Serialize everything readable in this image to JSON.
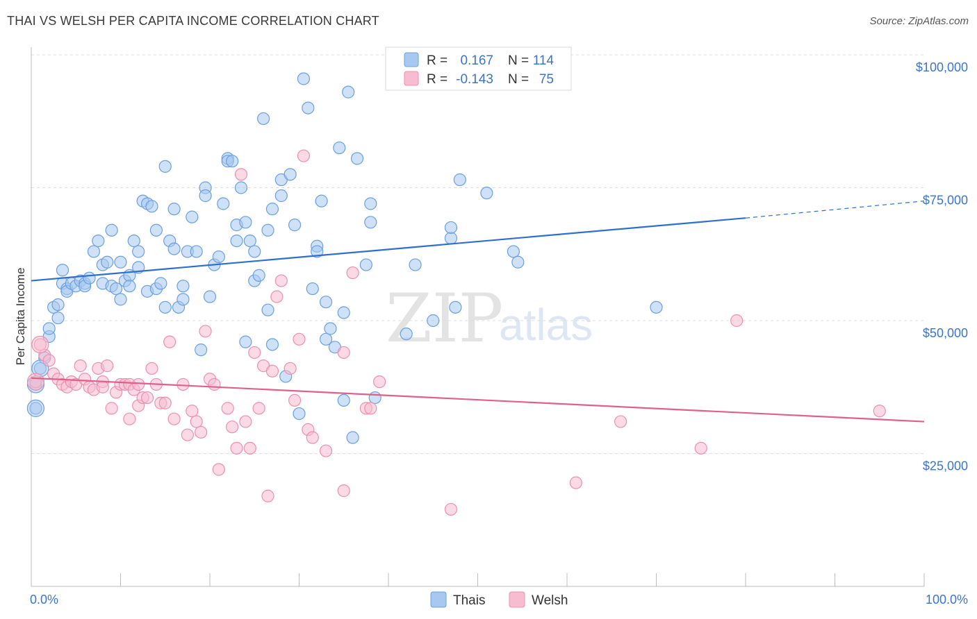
{
  "title": "THAI VS WELSH PER CAPITA INCOME CORRELATION CHART",
  "source": "Source: ZipAtlas.com",
  "watermark": {
    "zip": "ZIP",
    "atlas": "atlas"
  },
  "legend_top": [
    {
      "r_label": "R =",
      "r_value": "0.167",
      "n_label": "N =",
      "n_value": "114",
      "color": "#a8c8f0",
      "stroke": "#6a9fe0"
    },
    {
      "r_label": "R =",
      "r_value": "-0.143",
      "n_label": "N =",
      "n_value": "75",
      "color": "#f8bcd0",
      "stroke": "#ec8fae"
    }
  ],
  "legend_bottom": [
    {
      "label": "Thais",
      "color": "#a8c8f0",
      "stroke": "#6a9fe0"
    },
    {
      "label": "Welsh",
      "color": "#f8bcd0",
      "stroke": "#ec8fae"
    }
  ],
  "chart_data": {
    "type": "scatter",
    "title": "THAI VS WELSH PER CAPITA INCOME CORRELATION CHART",
    "xlabel": "",
    "ylabel": "Per Capita Income",
    "xlim": [
      0,
      100
    ],
    "ylim": [
      0,
      100000
    ],
    "x_tick_labels": [
      "0.0%",
      "100.0%"
    ],
    "y_ticks": [
      25000,
      50000,
      75000,
      100000
    ],
    "y_tick_labels": [
      "$25,000",
      "$50,000",
      "$75,000",
      "$100,000"
    ],
    "grid": "horizontal dashed",
    "legend_placement": "top-center and bottom-center",
    "series": [
      {
        "name": "Thais",
        "color": "#6a9fe0",
        "fill": "#a8c8f0",
        "trend": {
          "x": [
            0,
            80
          ],
          "y": [
            57500,
            69300
          ],
          "dashed_extension_to": [
            100,
            72500
          ],
          "color": "#2e6fd0"
        },
        "points": [
          [
            0.5,
            38000
          ],
          [
            0.5,
            33500
          ],
          [
            1,
            41000
          ],
          [
            1.5,
            43000
          ],
          [
            2,
            47000
          ],
          [
            2,
            48500
          ],
          [
            2.5,
            52500
          ],
          [
            3,
            53000
          ],
          [
            3,
            50500
          ],
          [
            3.5,
            57000
          ],
          [
            3.5,
            59500
          ],
          [
            4,
            56000
          ],
          [
            4,
            55500
          ],
          [
            4.5,
            57000
          ],
          [
            5,
            56500
          ],
          [
            5.5,
            57500
          ],
          [
            6,
            57000
          ],
          [
            6,
            56500
          ],
          [
            6.5,
            58000
          ],
          [
            7,
            63000
          ],
          [
            7.5,
            65000
          ],
          [
            8,
            57000
          ],
          [
            8,
            60500
          ],
          [
            8.5,
            61000
          ],
          [
            9,
            67000
          ],
          [
            9,
            56500
          ],
          [
            9.5,
            56000
          ],
          [
            10,
            54000
          ],
          [
            10,
            61000
          ],
          [
            10.5,
            57500
          ],
          [
            11,
            58500
          ],
          [
            11,
            56500
          ],
          [
            11.5,
            65000
          ],
          [
            12,
            60000
          ],
          [
            12,
            63000
          ],
          [
            12.5,
            72500
          ],
          [
            13,
            55500
          ],
          [
            13,
            72000
          ],
          [
            13.5,
            71500
          ],
          [
            14,
            67000
          ],
          [
            14,
            56000
          ],
          [
            14.5,
            57000
          ],
          [
            15,
            79000
          ],
          [
            15,
            52500
          ],
          [
            15.5,
            65000
          ],
          [
            16,
            71000
          ],
          [
            16,
            63500
          ],
          [
            16.5,
            52500
          ],
          [
            17,
            54000
          ],
          [
            17,
            56500
          ],
          [
            17.5,
            63000
          ],
          [
            18,
            69500
          ],
          [
            18.5,
            63000
          ],
          [
            19,
            44500
          ],
          [
            19.5,
            75000
          ],
          [
            19.5,
            73500
          ],
          [
            20,
            54500
          ],
          [
            20.5,
            60500
          ],
          [
            21,
            62000
          ],
          [
            21.5,
            72000
          ],
          [
            22,
            80500
          ],
          [
            22,
            80000
          ],
          [
            22.5,
            80000
          ],
          [
            23,
            68000
          ],
          [
            23,
            65000
          ],
          [
            23.5,
            75000
          ],
          [
            24,
            68500
          ],
          [
            24,
            46000
          ],
          [
            24.5,
            65000
          ],
          [
            25,
            57500
          ],
          [
            25,
            63000
          ],
          [
            25.5,
            58500
          ],
          [
            26,
            88000
          ],
          [
            26.5,
            52000
          ],
          [
            26.5,
            67000
          ],
          [
            27,
            71000
          ],
          [
            27,
            45500
          ],
          [
            28,
            73500
          ],
          [
            28,
            76500
          ],
          [
            28.5,
            39500
          ],
          [
            29,
            77500
          ],
          [
            29.5,
            68000
          ],
          [
            30,
            32500
          ],
          [
            30.5,
            95500
          ],
          [
            31,
            90000
          ],
          [
            31.5,
            56000
          ],
          [
            32,
            64000
          ],
          [
            32,
            63000
          ],
          [
            32.5,
            72500
          ],
          [
            33,
            53500
          ],
          [
            33,
            46500
          ],
          [
            33.5,
            48500
          ],
          [
            34,
            45000
          ],
          [
            34.5,
            82500
          ],
          [
            35,
            51500
          ],
          [
            35,
            35000
          ],
          [
            35.5,
            93000
          ],
          [
            36,
            28000
          ],
          [
            36.5,
            80500
          ],
          [
            37.5,
            60500
          ],
          [
            38,
            72000
          ],
          [
            38,
            68500
          ],
          [
            38.5,
            35500
          ],
          [
            42,
            47500
          ],
          [
            43,
            60500
          ],
          [
            45,
            50000
          ],
          [
            47,
            65500
          ],
          [
            47,
            67500
          ],
          [
            47.5,
            52500
          ],
          [
            48,
            76500
          ],
          [
            51,
            74000
          ],
          [
            54,
            63000
          ],
          [
            54.5,
            61000
          ],
          [
            70,
            52500
          ]
        ]
      },
      {
        "name": "Welsh",
        "color": "#ec8fae",
        "fill": "#f8bcd0",
        "trend": {
          "x": [
            0,
            100
          ],
          "y": [
            39200,
            31000
          ],
          "color": "#e0608a"
        },
        "points": [
          [
            0.5,
            38500
          ],
          [
            1,
            45500
          ],
          [
            1.5,
            43500
          ],
          [
            2,
            42500
          ],
          [
            2.5,
            40000
          ],
          [
            3,
            39000
          ],
          [
            3.5,
            38000
          ],
          [
            4,
            37500
          ],
          [
            4.5,
            38500
          ],
          [
            5,
            38000
          ],
          [
            5.5,
            41500
          ],
          [
            6,
            39000
          ],
          [
            6.5,
            37500
          ],
          [
            7,
            37000
          ],
          [
            7.5,
            41000
          ],
          [
            8,
            38500
          ],
          [
            8,
            37500
          ],
          [
            8.5,
            41500
          ],
          [
            9,
            33500
          ],
          [
            9.5,
            36500
          ],
          [
            10,
            38000
          ],
          [
            10.5,
            38000
          ],
          [
            11,
            38000
          ],
          [
            11,
            31500
          ],
          [
            11.5,
            37000
          ],
          [
            12,
            34000
          ],
          [
            12,
            38000
          ],
          [
            12.5,
            35500
          ],
          [
            13,
            35500
          ],
          [
            13.5,
            41000
          ],
          [
            14,
            38000
          ],
          [
            14.5,
            34500
          ],
          [
            15,
            34500
          ],
          [
            15.5,
            46000
          ],
          [
            16,
            31500
          ],
          [
            17,
            38000
          ],
          [
            17.5,
            28500
          ],
          [
            18,
            33000
          ],
          [
            18.5,
            31000
          ],
          [
            19,
            29000
          ],
          [
            19.5,
            48000
          ],
          [
            20,
            39000
          ],
          [
            20.5,
            38000
          ],
          [
            21,
            22000
          ],
          [
            22,
            33500
          ],
          [
            22.5,
            30000
          ],
          [
            23,
            26000
          ],
          [
            23.5,
            77500
          ],
          [
            24,
            31000
          ],
          [
            24.5,
            26000
          ],
          [
            25,
            44000
          ],
          [
            25.5,
            33500
          ],
          [
            26,
            41500
          ],
          [
            26.5,
            17000
          ],
          [
            27,
            40500
          ],
          [
            27.5,
            54500
          ],
          [
            28,
            57500
          ],
          [
            29,
            41000
          ],
          [
            29.5,
            35000
          ],
          [
            30,
            46500
          ],
          [
            30.5,
            81000
          ],
          [
            31,
            29500
          ],
          [
            31.5,
            28000
          ],
          [
            33,
            25500
          ],
          [
            35,
            44000
          ],
          [
            35,
            18000
          ],
          [
            36,
            59000
          ],
          [
            37.5,
            33500
          ],
          [
            38,
            33500
          ],
          [
            39,
            38500
          ],
          [
            47,
            14500
          ],
          [
            61,
            19500
          ],
          [
            66,
            31000
          ],
          [
            75,
            26000
          ],
          [
            79,
            50000
          ],
          [
            95,
            33000
          ]
        ]
      }
    ]
  }
}
